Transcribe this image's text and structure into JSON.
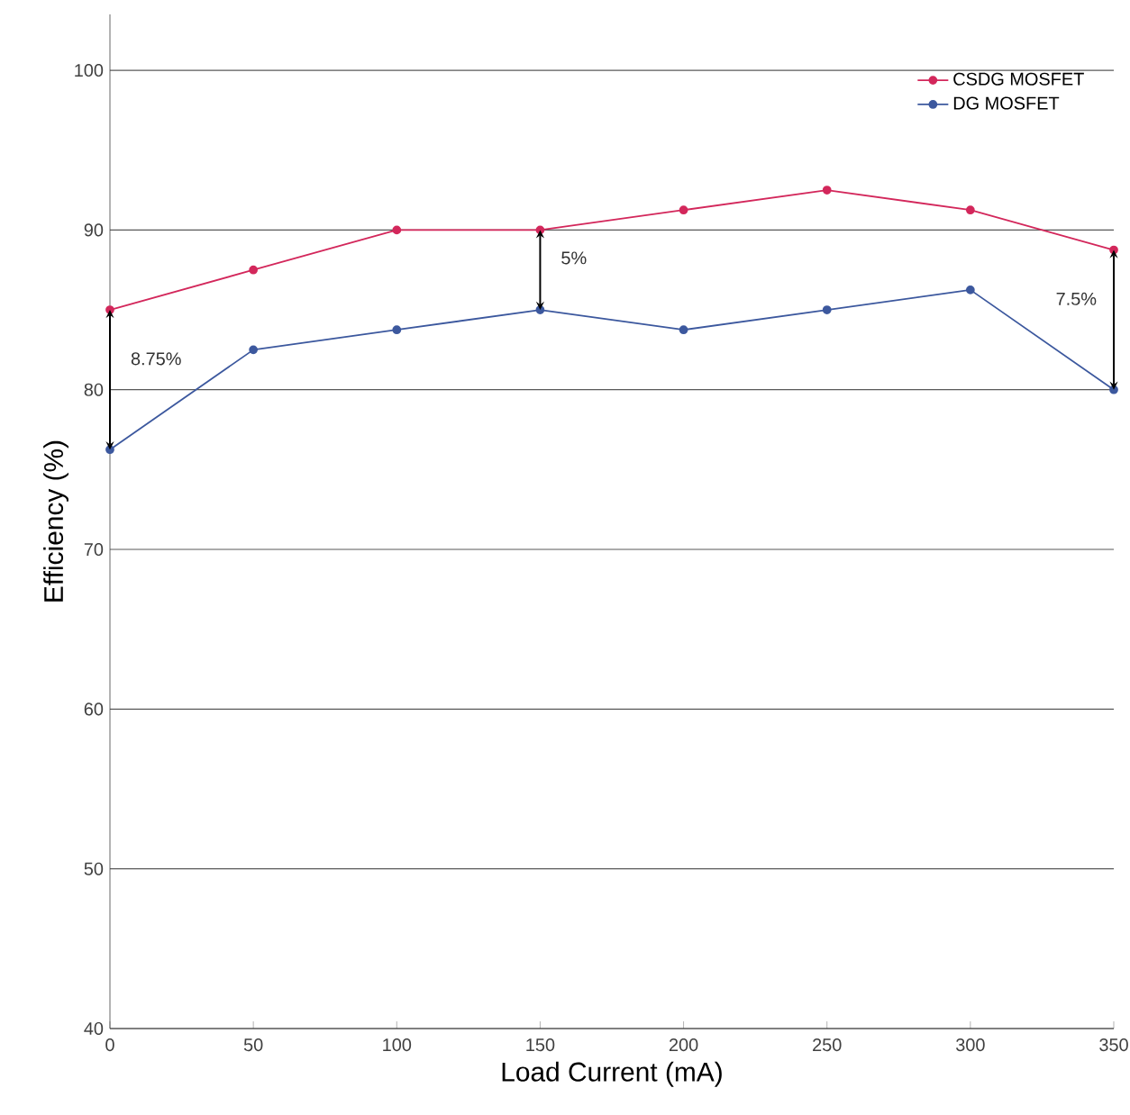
{
  "chart_data": {
    "type": "line",
    "xlabel": "Load Current (mA)",
    "ylabel": "Efficiency (%)",
    "x": [
      0,
      50,
      100,
      150,
      200,
      250,
      300,
      350
    ],
    "series": [
      {
        "name": "CSDG MOSFET",
        "color": "#d3275b",
        "values": [
          85,
          87.5,
          90,
          90,
          91.25,
          92.5,
          91.25,
          88.75
        ]
      },
      {
        "name": "DG MOSFET",
        "color": "#3c589e",
        "values": [
          76.25,
          82.5,
          83.75,
          85,
          83.75,
          85,
          86.25,
          80
        ]
      }
    ],
    "xlim": [
      0,
      350
    ],
    "ylim": [
      40,
      103.5
    ],
    "xticks": [
      0,
      50,
      100,
      150,
      200,
      250,
      300,
      350
    ],
    "yticks": [
      40,
      50,
      60,
      70,
      80,
      90,
      100
    ],
    "grid": "y",
    "legend": "top right",
    "marker": "circle",
    "line_style": "solid",
    "annotations": [
      {
        "text": "8.75%",
        "x": 0,
        "y": 85
      },
      {
        "text": "5%",
        "x": 150,
        "y": 90
      },
      {
        "text": "7.5%",
        "x": 350,
        "y": 88.75
      }
    ]
  }
}
